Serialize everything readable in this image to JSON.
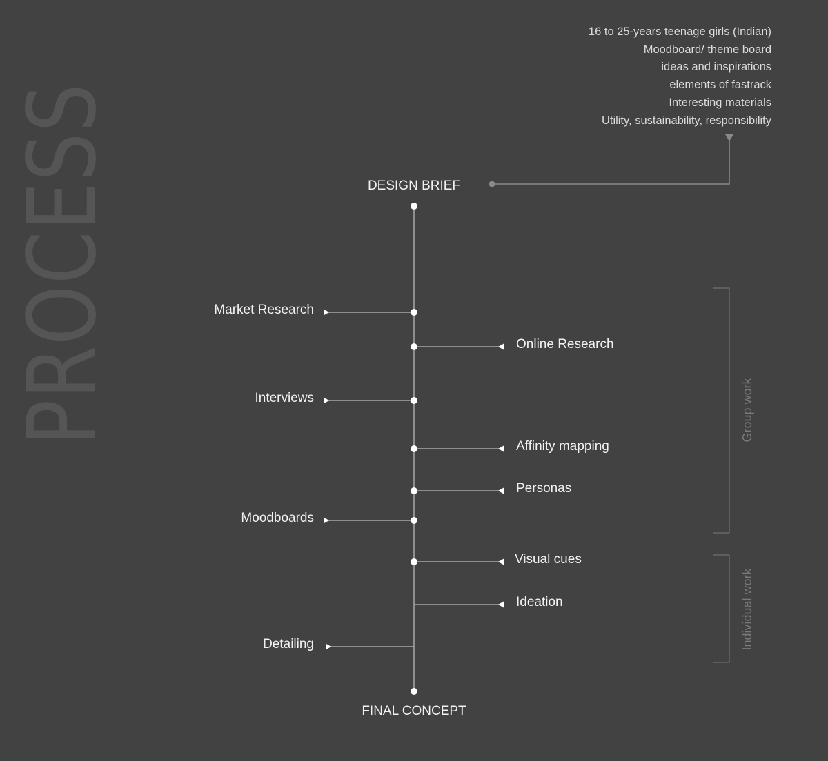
{
  "title": "PROCESS",
  "brief_notes": [
    "16 to 25-years teenage girls (Indian)",
    "Moodboard/ theme board",
    "ideas and inspirations",
    "elements of fastrack",
    "Interesting materials",
    "Utility, sustainability, responsibility"
  ],
  "start_label": "DESIGN BRIEF",
  "end_label": "FINAL CONCEPT",
  "steps": [
    {
      "label": "Market Research",
      "side": "left",
      "dot": true
    },
    {
      "label": "Online Research",
      "side": "right",
      "dot": true
    },
    {
      "label": "Interviews",
      "side": "left",
      "dot": true
    },
    {
      "label": "Affinity mapping",
      "side": "right",
      "dot": true
    },
    {
      "label": "Personas",
      "side": "right",
      "dot": true
    },
    {
      "label": "Moodboards",
      "side": "left",
      "dot": true
    },
    {
      "label": "Visual cues",
      "side": "right",
      "dot": true
    },
    {
      "label": "Ideation",
      "side": "right",
      "dot": false
    },
    {
      "label": "Detailing",
      "side": "left",
      "dot": false
    }
  ],
  "groups": [
    {
      "label": "Group work"
    },
    {
      "label": "Individual work"
    }
  ],
  "colors": {
    "background": "#424242",
    "line": "#a8a8a8",
    "text": "#f2f2f2",
    "muted": "#7a7a7a"
  }
}
